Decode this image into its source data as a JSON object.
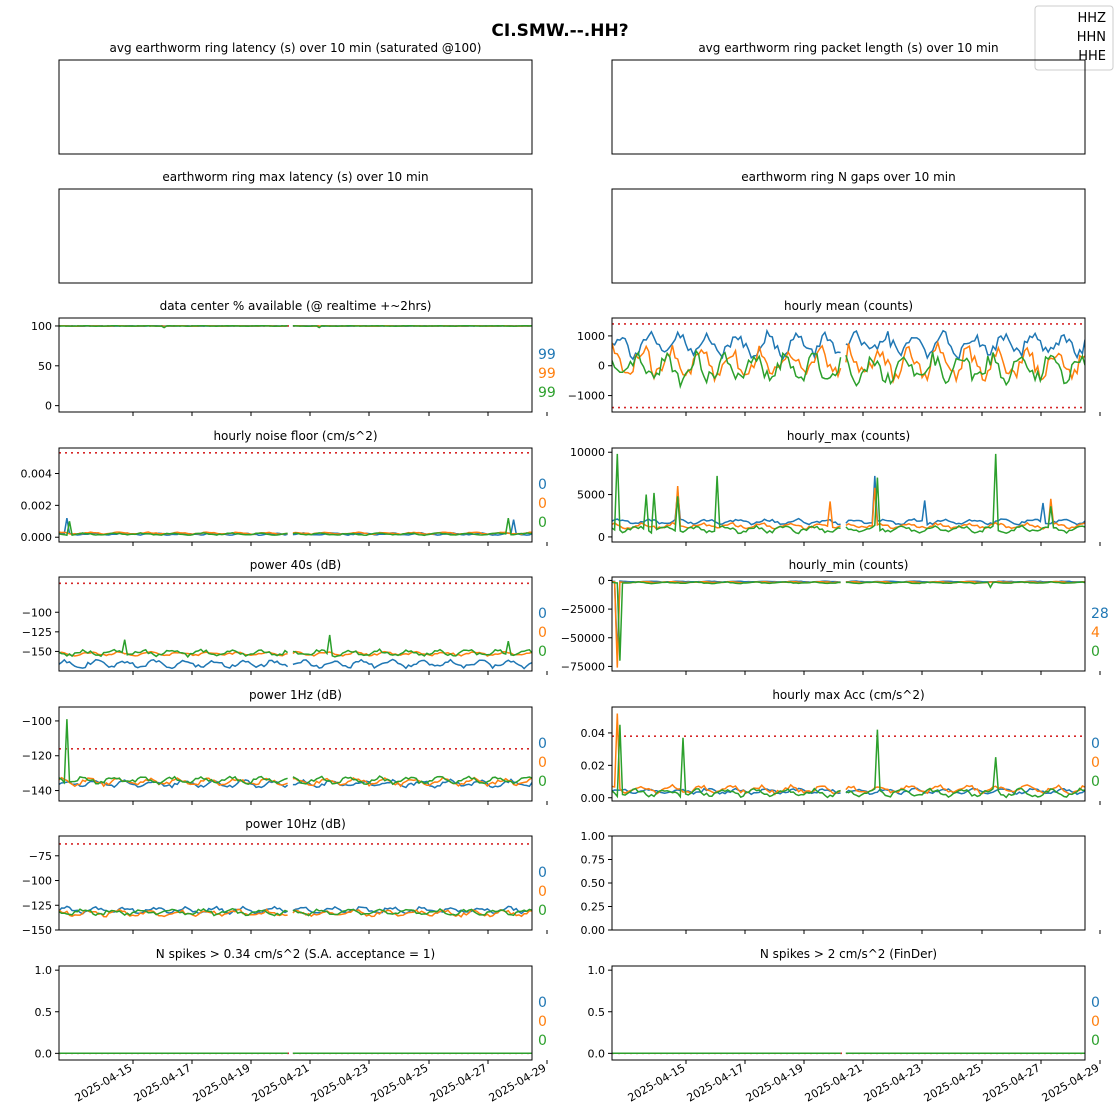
{
  "figure": {
    "title": "CI.SMW.--.HH?",
    "legend": [
      "HHZ",
      "HHN",
      "HHE"
    ],
    "colors": {
      "HHZ": "#1f77b4",
      "HHN": "#ff7f0e",
      "HHE": "#2ca02c",
      "threshold": "#d62728"
    },
    "date_ticks": [
      "2025-04-15",
      "2025-04-17",
      "2025-04-19",
      "2025-04-21",
      "2025-04-23",
      "2025-04-25",
      "2025-04-27",
      "2025-04-29"
    ],
    "x_range": [
      "2025-04-14T12:00",
      "2025-05-01T00:00"
    ]
  },
  "chart_data": [
    {
      "id": "p1",
      "type": "line",
      "title": "avg earthworm ring latency (s)   over 10 min (saturated @100)",
      "empty": true,
      "show_ticks": false,
      "values_right": []
    },
    {
      "id": "p2",
      "type": "line",
      "title": "avg earthworm ring packet length (s)   over 10 min",
      "empty": true,
      "show_ticks": false,
      "values_right": []
    },
    {
      "id": "p3",
      "type": "line",
      "title": "earthworm ring max latency (s)   over 10 min",
      "empty": true,
      "show_ticks": false,
      "values_right": []
    },
    {
      "id": "p4",
      "type": "line",
      "title": "earthworm ring N gaps   over 10 min",
      "empty": true,
      "show_ticks": false,
      "values_right": []
    },
    {
      "id": "p5",
      "type": "line",
      "title": "data center % available (@ realtime +~2hrs)",
      "ylim": [
        -8,
        110
      ],
      "yticks": [
        {
          "v": 0,
          "l": "0"
        },
        {
          "v": 50,
          "l": "50"
        },
        {
          "v": 100,
          "l": "100"
        }
      ],
      "threshold": [
        100
      ],
      "values_right": [
        "99",
        "99",
        "99"
      ],
      "series": [
        {
          "name": "HHZ",
          "base": 100,
          "amp": 0.3,
          "spikes": []
        },
        {
          "name": "HHN",
          "base": 100,
          "amp": 0.3,
          "spikes": []
        },
        {
          "name": "HHE",
          "base": 100,
          "amp": 0.3,
          "spikes": [
            {
              "t": 0.22,
              "v": 98
            },
            {
              "t": 0.49,
              "v": 96
            },
            {
              "t": 0.55,
              "v": 98
            }
          ]
        }
      ]
    },
    {
      "id": "p6",
      "type": "line",
      "title": "hourly mean (counts)",
      "ylim": [
        -1550,
        1600
      ],
      "yticks": [
        {
          "v": -1000,
          "l": "−1000"
        },
        {
          "v": 0,
          "l": "0"
        },
        {
          "v": 1000,
          "l": "1000"
        }
      ],
      "threshold": [
        1400,
        -1400
      ],
      "values_right": [],
      "series": [
        {
          "name": "HHZ",
          "base": 700,
          "amp": 500,
          "spikes": []
        },
        {
          "name": "HHN",
          "base": 100,
          "amp": 700,
          "spikes": []
        },
        {
          "name": "HHE",
          "base": -100,
          "amp": 600,
          "spikes": []
        }
      ]
    },
    {
      "id": "p7",
      "type": "line",
      "title": "hourly noise floor (cm/s^2)",
      "ylim": [
        -0.0003,
        0.0056
      ],
      "yticks": [
        {
          "v": 0,
          "l": "0.000"
        },
        {
          "v": 0.002,
          "l": "0.002"
        },
        {
          "v": 0.004,
          "l": "0.004"
        }
      ],
      "threshold": [
        0.0053
      ],
      "values_right": [
        "0",
        "0",
        "0"
      ],
      "series": [
        {
          "name": "HHZ",
          "base": 0.0002,
          "amp": 8e-05,
          "spikes": [
            {
              "t": 0.015,
              "v": 0.0012
            },
            {
              "t": 0.96,
              "v": 0.0011
            }
          ]
        },
        {
          "name": "HHN",
          "base": 0.00025,
          "amp": 8e-05,
          "spikes": []
        },
        {
          "name": "HHE",
          "base": 0.0002,
          "amp": 8e-05,
          "spikes": [
            {
              "t": 0.02,
              "v": 0.001
            },
            {
              "t": 0.95,
              "v": 0.0012
            }
          ]
        }
      ]
    },
    {
      "id": "p8",
      "type": "line",
      "title": "hourly_max (counts)",
      "ylim": [
        -600,
        10500
      ],
      "yticks": [
        {
          "v": 0,
          "l": "0"
        },
        {
          "v": 5000,
          "l": "5000"
        },
        {
          "v": 10000,
          "l": "10000"
        }
      ],
      "threshold": [],
      "values_right": [],
      "series": [
        {
          "name": "HHZ",
          "base": 1800,
          "amp": 400,
          "spikes": [
            {
              "t": 0.14,
              "v": 5400
            },
            {
              "t": 0.555,
              "v": 7200
            },
            {
              "t": 0.66,
              "v": 4300
            },
            {
              "t": 0.91,
              "v": 4000
            }
          ]
        },
        {
          "name": "HHN",
          "base": 1300,
          "amp": 400,
          "spikes": [
            {
              "t": 0.14,
              "v": 6000
            },
            {
              "t": 0.46,
              "v": 4200
            },
            {
              "t": 0.555,
              "v": 5800
            },
            {
              "t": 0.93,
              "v": 4500
            }
          ]
        },
        {
          "name": "HHE",
          "base": 900,
          "amp": 500,
          "spikes": [
            {
              "t": 0.012,
              "v": 9800
            },
            {
              "t": 0.07,
              "v": 5000
            },
            {
              "t": 0.09,
              "v": 5200
            },
            {
              "t": 0.14,
              "v": 4800
            },
            {
              "t": 0.22,
              "v": 7200
            },
            {
              "t": 0.56,
              "v": 7000
            },
            {
              "t": 0.81,
              "v": 9800
            },
            {
              "t": 0.93,
              "v": 3600
            }
          ]
        }
      ]
    },
    {
      "id": "p9",
      "type": "line",
      "title": "power 40s (dB)",
      "ylim": [
        -175,
        -55
      ],
      "yticks": [
        {
          "v": -150,
          "l": "−150"
        },
        {
          "v": -125,
          "l": "−125"
        },
        {
          "v": -100,
          "l": "−100"
        }
      ],
      "threshold": [
        -63
      ],
      "values_right": [
        "0",
        "0",
        "0"
      ],
      "series": [
        {
          "name": "HHZ",
          "base": -166,
          "amp": 6,
          "spikes": []
        },
        {
          "name": "HHN",
          "base": -153,
          "amp": 3,
          "spikes": []
        },
        {
          "name": "HHE",
          "base": -152,
          "amp": 5,
          "spikes": [
            {
              "t": 0.14,
              "v": -135
            },
            {
              "t": 0.57,
              "v": -129
            },
            {
              "t": 0.95,
              "v": -137
            }
          ]
        }
      ]
    },
    {
      "id": "p10",
      "type": "line",
      "title": "hourly_min (counts)",
      "ylim": [
        -79000,
        3000
      ],
      "yticks": [
        {
          "v": -75000,
          "l": "−75000"
        },
        {
          "v": -50000,
          "l": "−50000"
        },
        {
          "v": -25000,
          "l": "−25000"
        },
        {
          "v": 0,
          "l": "0"
        }
      ],
      "threshold": [],
      "values_right": [
        "28",
        "4",
        "0"
      ],
      "series": [
        {
          "name": "HHZ",
          "base": -1000,
          "amp": 500,
          "spikes": [
            {
              "t": 0.013,
              "v": -66000
            }
          ]
        },
        {
          "name": "HHN",
          "base": -1500,
          "amp": 600,
          "spikes": [
            {
              "t": 0.012,
              "v": -76000
            }
          ]
        },
        {
          "name": "HHE",
          "base": -2000,
          "amp": 800,
          "spikes": [
            {
              "t": 0.014,
              "v": -70000
            },
            {
              "t": 0.8,
              "v": -6000
            }
          ]
        }
      ]
    },
    {
      "id": "p11",
      "type": "line",
      "title": "power 1Hz (dB)",
      "ylim": [
        -146,
        -92
      ],
      "yticks": [
        {
          "v": -140,
          "l": "−140"
        },
        {
          "v": -120,
          "l": "−120"
        },
        {
          "v": -100,
          "l": "−100"
        }
      ],
      "threshold": [
        -116
      ],
      "values_right": [
        "0",
        "0",
        "0"
      ],
      "series": [
        {
          "name": "HHZ",
          "base": -136,
          "amp": 2.5,
          "spikes": []
        },
        {
          "name": "HHN",
          "base": -135,
          "amp": 2.5,
          "spikes": []
        },
        {
          "name": "HHE",
          "base": -134,
          "amp": 2.5,
          "spikes": [
            {
              "t": 0.015,
              "v": -99
            }
          ]
        }
      ]
    },
    {
      "id": "p12",
      "type": "line",
      "title": "hourly max Acc (cm/s^2)",
      "ylim": [
        -0.002,
        0.056
      ],
      "yticks": [
        {
          "v": 0,
          "l": "0.00"
        },
        {
          "v": 0.02,
          "l": "0.02"
        },
        {
          "v": 0.04,
          "l": "0.04"
        }
      ],
      "threshold": [
        0.038
      ],
      "values_right": [
        "0",
        "0",
        "0"
      ],
      "series": [
        {
          "name": "HHZ",
          "base": 0.004,
          "amp": 0.002,
          "spikes": []
        },
        {
          "name": "HHN",
          "base": 0.005,
          "amp": 0.003,
          "spikes": [
            {
              "t": 0.013,
              "v": 0.052
            }
          ]
        },
        {
          "name": "HHE",
          "base": 0.003,
          "amp": 0.003,
          "spikes": [
            {
              "t": 0.015,
              "v": 0.045
            },
            {
              "t": 0.15,
              "v": 0.037
            },
            {
              "t": 0.56,
              "v": 0.042
            },
            {
              "t": 0.81,
              "v": 0.025
            }
          ]
        }
      ]
    },
    {
      "id": "p13",
      "type": "line",
      "title": "power 10Hz (dB)",
      "ylim": [
        -150,
        -55
      ],
      "yticks": [
        {
          "v": -150,
          "l": "−150"
        },
        {
          "v": -125,
          "l": "−125"
        },
        {
          "v": -100,
          "l": "−100"
        },
        {
          "v": -75,
          "l": "−75"
        }
      ],
      "threshold": [
        -63
      ],
      "values_right": [
        "0",
        "0",
        "0"
      ],
      "series": [
        {
          "name": "HHZ",
          "base": -130,
          "amp": 4,
          "spikes": []
        },
        {
          "name": "HHN",
          "base": -133,
          "amp": 4,
          "spikes": []
        },
        {
          "name": "HHE",
          "base": -132,
          "amp": 4,
          "spikes": []
        }
      ]
    },
    {
      "id": "p14",
      "type": "line",
      "title": "",
      "ylim": [
        0,
        1
      ],
      "yticks": [
        {
          "v": 0,
          "l": "0.00"
        },
        {
          "v": 0.25,
          "l": "0.25"
        },
        {
          "v": 0.5,
          "l": "0.50"
        },
        {
          "v": 0.75,
          "l": "0.75"
        },
        {
          "v": 1,
          "l": "1.00"
        }
      ],
      "threshold": [],
      "values_right": [],
      "series": []
    },
    {
      "id": "p15",
      "type": "line",
      "title": "N spikes > 0.34 cm/s^2 (S.A. acceptance = 1)",
      "ylim": [
        -0.08,
        1.05
      ],
      "yticks": [
        {
          "v": 0,
          "l": "0.0"
        },
        {
          "v": 0.5,
          "l": "0.5"
        },
        {
          "v": 1,
          "l": "1.0"
        }
      ],
      "threshold": [
        0
      ],
      "values_right": [
        "0",
        "0",
        "0"
      ],
      "series": [
        {
          "name": "HHZ",
          "base": 0,
          "amp": 0,
          "spikes": []
        },
        {
          "name": "HHN",
          "base": 0,
          "amp": 0,
          "spikes": []
        },
        {
          "name": "HHE",
          "base": 0,
          "amp": 0,
          "spikes": []
        }
      ]
    },
    {
      "id": "p16",
      "type": "line",
      "title": "N spikes > 2 cm/s^2 (FinDer)",
      "ylim": [
        -0.08,
        1.05
      ],
      "yticks": [
        {
          "v": 0,
          "l": "0.0"
        },
        {
          "v": 0.5,
          "l": "0.5"
        },
        {
          "v": 1,
          "l": "1.0"
        }
      ],
      "threshold": [
        0
      ],
      "values_right": [
        "0",
        "0",
        "0"
      ],
      "series": [
        {
          "name": "HHZ",
          "base": 0,
          "amp": 0,
          "spikes": []
        },
        {
          "name": "HHN",
          "base": 0,
          "amp": 0,
          "spikes": []
        },
        {
          "name": "HHE",
          "base": 0,
          "amp": 0,
          "spikes": []
        }
      ]
    }
  ]
}
